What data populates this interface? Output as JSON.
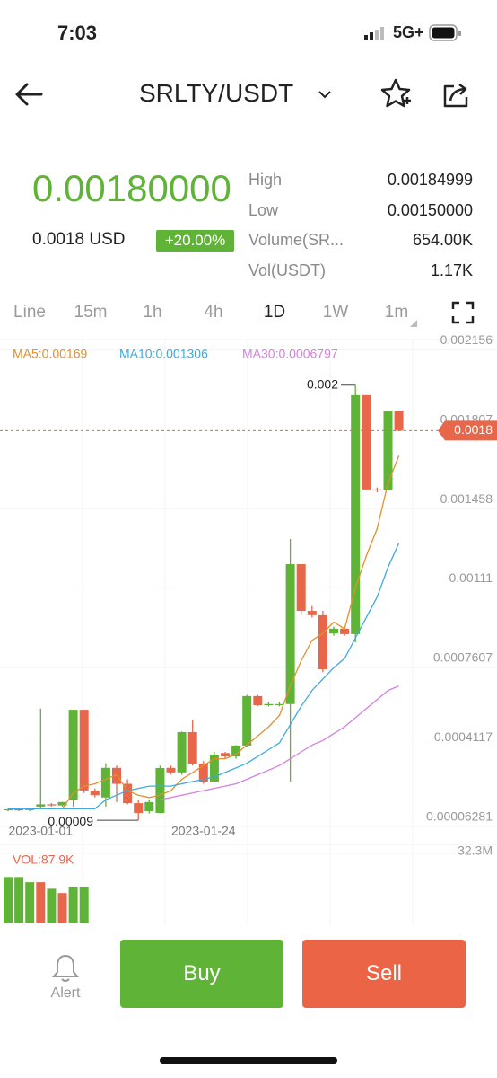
{
  "status": {
    "time": "7:03",
    "network": "5G+"
  },
  "header": {
    "title": "SRLTY/USDT"
  },
  "price": {
    "last": "0.00180000",
    "usd": "0.0018 USD",
    "change": "+20.00%"
  },
  "stats": [
    {
      "label": "High",
      "value": "0.00184999"
    },
    {
      "label": "Low",
      "value": "0.00150000"
    },
    {
      "label": "Volume(SR...",
      "value": "654.00K"
    },
    {
      "label": "Vol(USDT)",
      "value": "1.17K"
    }
  ],
  "tabs": [
    "Line",
    "15m",
    "1h",
    "4h",
    "1D",
    "1W",
    "1m"
  ],
  "active_tab": "1D",
  "chart": {
    "type": "candlestick",
    "categories": [
      null,
      null,
      null,
      "2023-01-01",
      null,
      null,
      null,
      null,
      null,
      null,
      null,
      null,
      null,
      null,
      null,
      null,
      null,
      null,
      "2023-01-24",
      null,
      null,
      null,
      null,
      null,
      null,
      null,
      null,
      null,
      null,
      null,
      null,
      null,
      null,
      null,
      null,
      null,
      null
    ],
    "open": [
      0.000135,
      0.000138,
      0.000136,
      0.00015,
      0.00016,
      0.000155,
      0.00018,
      0.000575,
      0.00022,
      0.00019,
      0.00032,
      0.00025,
      0.000165,
      0.00013,
      0.000122,
      0.00032,
      0.0003,
      0.000477,
      0.000339,
      0.00026,
      0.000385,
      0.00037,
      0.000418,
      0.000635,
      0.000595,
      0.0006,
      0.0006,
      0.001214,
      0.001009,
      0.00099,
      0.00091,
      0.000931,
      0.000907,
      0.001956,
      0.001542,
      0.00154,
      0.001885
    ],
    "high": [
      0.00014,
      0.00014,
      0.00014,
      0.00058,
      0.000165,
      0.00017,
      0.000575,
      0.000575,
      0.00023,
      0.00034,
      0.00033,
      0.00027,
      0.00018,
      0.00018,
      0.00033,
      0.00033,
      0.00048,
      0.00053,
      0.00035,
      0.00039,
      0.00039,
      0.00042,
      0.00064,
      0.00064,
      0.00061,
      0.00061,
      0.001325,
      0.001214,
      0.00103,
      0.001009,
      0.00094,
      0.00094,
      0.002,
      0.001956,
      0.00155,
      0.001885,
      0.001885
    ],
    "low": [
      0.00013,
      0.00013,
      0.00013,
      0.00014,
      0.00015,
      0.00015,
      0.00015,
      0.00021,
      0.00019,
      0.00015,
      0.00017,
      0.00016,
      9e-05,
      0.00012,
      0.00012,
      0.00029,
      0.00029,
      0.00033,
      0.00025,
      0.00026,
      0.00036,
      0.00036,
      0.00041,
      0.00059,
      0.00059,
      0.00059,
      0.00026,
      0.00099,
      0.00098,
      0.00074,
      0.0009,
      0.0009,
      0.000871,
      0.00154,
      0.00153,
      0.00154,
      0.0018
    ],
    "close": [
      0.000138,
      0.000136,
      0.000139,
      0.00016,
      0.000155,
      0.00017,
      0.000575,
      0.000221,
      0.0002,
      0.00032,
      0.00025,
      0.000165,
      0.000122,
      0.00017,
      0.000319,
      0.0003,
      0.000477,
      0.000339,
      0.00026,
      0.000378,
      0.00037,
      0.000418,
      0.000635,
      0.000595,
      0.0006,
      0.0006,
      0.001214,
      0.001009,
      0.00099,
      0.000753,
      0.000931,
      0.000907,
      0.001956,
      0.001542,
      0.00154,
      0.001885,
      0.0018
    ],
    "up_color": "#5fb336",
    "down_color": "#e8664a",
    "series": [
      {
        "name": "MA5:0.00169",
        "color": "#e0912c",
        "values": [
          0.00014,
          0.00014,
          0.00014,
          0.00014,
          0.00014,
          0.00014,
          0.00021,
          0.00024,
          0.00025,
          0.00027,
          0.00029,
          0.00022,
          0.0002,
          0.00019,
          0.0002,
          0.00022,
          0.00027,
          0.0003,
          0.00033,
          0.00036,
          0.00036,
          0.00038,
          0.00042,
          0.00046,
          0.0005,
          0.00055,
          0.00068,
          0.00079,
          0.00088,
          0.00091,
          0.00096,
          0.00093,
          0.00111,
          0.00125,
          0.00137,
          0.00157,
          0.00169
        ]
      },
      {
        "name": "MA10:0.001306",
        "color": "#3fa9e0",
        "values": [
          0.00014,
          0.00014,
          0.00014,
          0.00014,
          0.00014,
          0.00014,
          0.00014,
          0.00014,
          0.00014,
          0.00018,
          0.0002,
          0.00022,
          0.00023,
          0.00024,
          0.00024,
          0.00024,
          0.00025,
          0.00026,
          0.00027,
          0.00028,
          0.0003,
          0.00032,
          0.00034,
          0.00037,
          0.0004,
          0.00043,
          0.00051,
          0.00059,
          0.00066,
          0.00071,
          0.00076,
          0.0008,
          0.00089,
          0.00098,
          0.00107,
          0.0012,
          0.001306
        ]
      },
      {
        "name": "MA30:0.0006797",
        "color": "#d67fe0",
        "values": [
          null,
          null,
          null,
          null,
          null,
          null,
          null,
          null,
          null,
          null,
          null,
          null,
          null,
          null,
          0.00018,
          0.00019,
          0.0002,
          0.00021,
          0.00022,
          0.00023,
          0.00024,
          0.00025,
          0.00027,
          0.00029,
          0.00031,
          0.00033,
          0.00036,
          0.00039,
          0.00042,
          0.00044,
          0.00047,
          0.0005,
          0.00054,
          0.00058,
          0.00062,
          0.00066,
          0.0006797
        ]
      }
    ],
    "ylim": [
      -1.6e-05,
      0.002192
    ],
    "yticks": [
      0.002156,
      0.001807,
      0.001458,
      0.00111,
      0.0007607,
      0.0004117,
      6.281e-05
    ],
    "grid": true,
    "last_price": 0.0018,
    "high_marker": "0.002",
    "low_marker": "0.00009",
    "volume": {
      "label": "VOL:87.9K",
      "ylim": [
        0,
        32.3
      ],
      "yticks": [
        {
          "value": 32.3,
          "label": "32.3M"
        }
      ],
      "values": [
        21.4,
        21.4,
        19,
        19,
        16,
        14,
        17,
        17
      ],
      "colors": [
        "#5fb336",
        "#5fb336",
        "#5fb336",
        "#e8664a",
        "#5fb336",
        "#e8664a",
        "#5fb336",
        "#5fb336"
      ]
    }
  },
  "footer": {
    "alert": "Alert",
    "buy": "Buy",
    "sell": "Sell"
  }
}
